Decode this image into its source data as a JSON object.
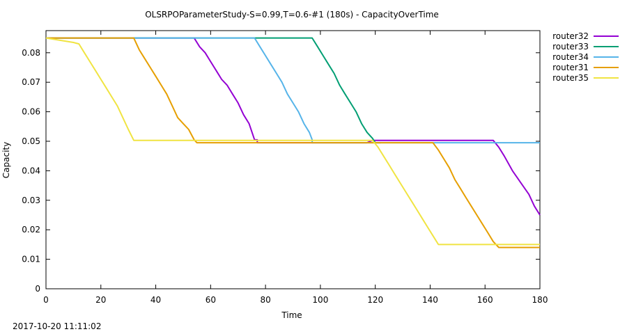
{
  "chart_data": {
    "type": "line",
    "title": "OLSRPOParameterStudy-S=0.99,T=0.6-#1 (180s) - CapacityOverTime",
    "xlabel": "Time",
    "ylabel": "Capacity",
    "xlim": [
      0,
      180
    ],
    "ylim": [
      0,
      0.0875
    ],
    "xticks": [
      0,
      20,
      40,
      60,
      80,
      100,
      120,
      140,
      160,
      180
    ],
    "yticks": [
      0,
      0.01,
      0.02,
      0.03,
      0.04,
      0.05,
      0.06,
      0.07,
      0.08
    ],
    "ytick_labels": [
      "0",
      "0.01",
      "0.02",
      "0.03",
      "0.04",
      "0.05",
      "0.06",
      "0.07",
      "0.08"
    ],
    "grid": false,
    "legend_position": "outside-right",
    "series": [
      {
        "name": "router32",
        "color": "#9400d3",
        "points": [
          [
            0,
            0.085
          ],
          [
            54,
            0.085
          ],
          [
            56,
            0.082
          ],
          [
            58,
            0.08
          ],
          [
            60,
            0.077
          ],
          [
            62,
            0.074
          ],
          [
            64,
            0.071
          ],
          [
            66,
            0.069
          ],
          [
            68,
            0.066
          ],
          [
            70,
            0.063
          ],
          [
            72,
            0.059
          ],
          [
            74,
            0.056
          ],
          [
            76,
            0.0505
          ],
          [
            77,
            0.0505
          ],
          [
            77,
            0.0495
          ],
          [
            117,
            0.0495
          ],
          [
            119,
            0.0503
          ],
          [
            120,
            0.0503
          ],
          [
            163,
            0.0503
          ],
          [
            165,
            0.048
          ],
          [
            167,
            0.045
          ],
          [
            170,
            0.04
          ],
          [
            173,
            0.036
          ],
          [
            176,
            0.032
          ],
          [
            178,
            0.028
          ],
          [
            180,
            0.025
          ]
        ]
      },
      {
        "name": "router33",
        "color": "#009e73",
        "points": [
          [
            0,
            0.085
          ],
          [
            97,
            0.085
          ],
          [
            99,
            0.082
          ],
          [
            101,
            0.079
          ],
          [
            103,
            0.076
          ],
          [
            105,
            0.073
          ],
          [
            107,
            0.069
          ],
          [
            109,
            0.066
          ],
          [
            111,
            0.063
          ],
          [
            113,
            0.06
          ],
          [
            115,
            0.056
          ],
          [
            117,
            0.053
          ],
          [
            119,
            0.051
          ],
          [
            120,
            0.0495
          ],
          [
            122,
            0.0495
          ]
        ]
      },
      {
        "name": "router34",
        "color": "#56b4e9",
        "points": [
          [
            0,
            0.085
          ],
          [
            76,
            0.085
          ],
          [
            78,
            0.082
          ],
          [
            80,
            0.079
          ],
          [
            82,
            0.076
          ],
          [
            84,
            0.073
          ],
          [
            86,
            0.07
          ],
          [
            88,
            0.066
          ],
          [
            90,
            0.063
          ],
          [
            92,
            0.06
          ],
          [
            94,
            0.056
          ],
          [
            96,
            0.053
          ],
          [
            97,
            0.0505
          ],
          [
            97,
            0.0495
          ],
          [
            180,
            0.0495
          ]
        ]
      },
      {
        "name": "router31",
        "color": "#e69f00",
        "points": [
          [
            0,
            0.085
          ],
          [
            32,
            0.085
          ],
          [
            34,
            0.081
          ],
          [
            36,
            0.078
          ],
          [
            38,
            0.075
          ],
          [
            40,
            0.072
          ],
          [
            42,
            0.069
          ],
          [
            44,
            0.066
          ],
          [
            46,
            0.062
          ],
          [
            48,
            0.058
          ],
          [
            50,
            0.056
          ],
          [
            52,
            0.054
          ],
          [
            54,
            0.0505
          ],
          [
            55,
            0.0495
          ],
          [
            141,
            0.0495
          ],
          [
            143,
            0.047
          ],
          [
            145,
            0.044
          ],
          [
            147,
            0.041
          ],
          [
            149,
            0.037
          ],
          [
            151,
            0.034
          ],
          [
            153,
            0.031
          ],
          [
            155,
            0.028
          ],
          [
            157,
            0.025
          ],
          [
            159,
            0.022
          ],
          [
            161,
            0.019
          ],
          [
            163,
            0.016
          ],
          [
            165,
            0.014
          ],
          [
            180,
            0.014
          ]
        ]
      },
      {
        "name": "router35",
        "color": "#f0e442",
        "points": [
          [
            0,
            0.085
          ],
          [
            10,
            0.0835
          ],
          [
            12,
            0.083
          ],
          [
            14,
            0.08
          ],
          [
            16,
            0.077
          ],
          [
            18,
            0.074
          ],
          [
            20,
            0.071
          ],
          [
            22,
            0.068
          ],
          [
            24,
            0.065
          ],
          [
            26,
            0.062
          ],
          [
            28,
            0.058
          ],
          [
            30,
            0.054
          ],
          [
            32,
            0.0503
          ],
          [
            119,
            0.0503
          ],
          [
            121,
            0.048
          ],
          [
            123,
            0.045
          ],
          [
            125,
            0.042
          ],
          [
            127,
            0.039
          ],
          [
            129,
            0.036
          ],
          [
            131,
            0.033
          ],
          [
            133,
            0.03
          ],
          [
            135,
            0.027
          ],
          [
            137,
            0.024
          ],
          [
            139,
            0.021
          ],
          [
            141,
            0.018
          ],
          [
            143,
            0.015
          ],
          [
            180,
            0.015
          ]
        ]
      }
    ]
  },
  "footer": {
    "timestamp": "2017-10-20 11:11:02"
  }
}
